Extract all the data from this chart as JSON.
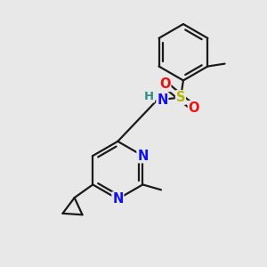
{
  "bg_color": "#e8e8e8",
  "bond_color": "#1a1a1a",
  "N_color": "#1010ee",
  "O_color": "#ee1010",
  "S_color": "#b8b800",
  "H_color": "#2e8b8b",
  "line_width": 1.6,
  "font_size": 10.5,
  "fig_w": 3.0,
  "fig_h": 3.0,
  "dpi": 100,
  "xlim": [
    -1.0,
    1.0
  ],
  "ylim": [
    -1.0,
    1.0
  ]
}
